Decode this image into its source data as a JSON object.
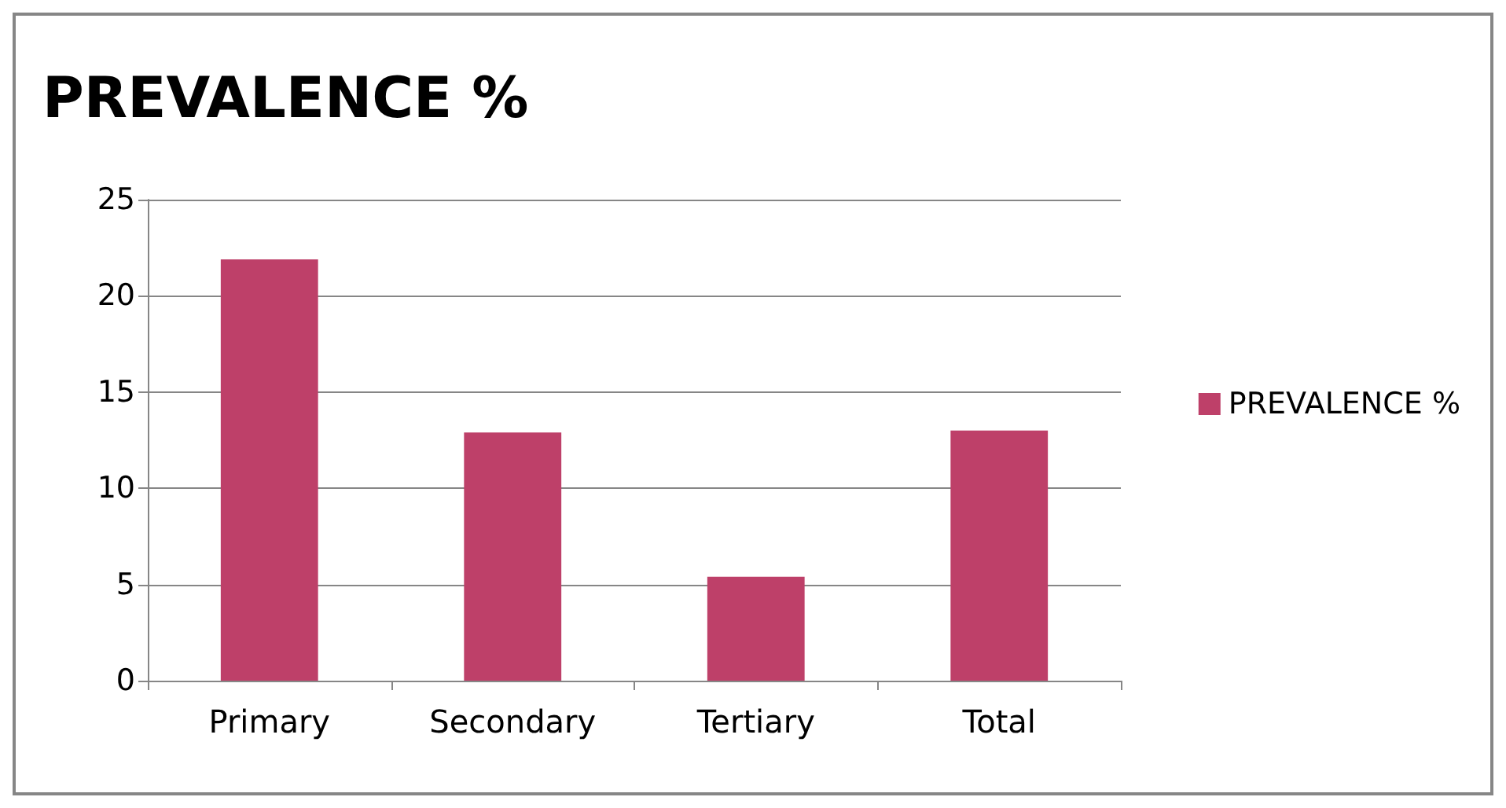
{
  "chart_data": {
    "type": "bar",
    "title": "PREVALENCE %",
    "categories": [
      "Primary",
      "Secondary",
      "Tertiary",
      "Total"
    ],
    "series": [
      {
        "name": "PREVALENCE %",
        "color": "#be4069",
        "values": [
          21.9,
          12.9,
          5.4,
          13
        ]
      }
    ],
    "ylim": [
      0,
      25
    ],
    "yticks": [
      0,
      5,
      10,
      15,
      20,
      25
    ],
    "grid": "y",
    "legend": "right"
  }
}
